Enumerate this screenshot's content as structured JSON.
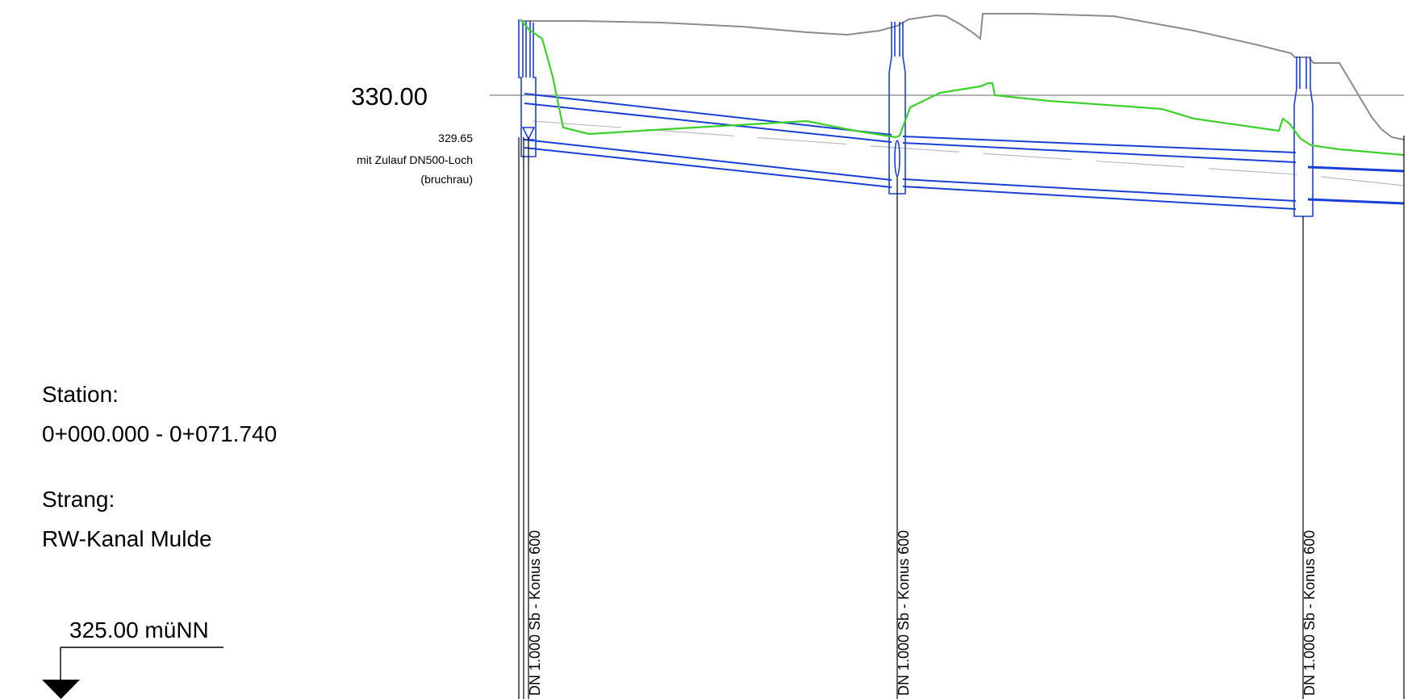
{
  "reference_elevation": "330.00",
  "inlet_note": {
    "elevation": "329.65",
    "line1": "mit Zulauf DN500-Loch",
    "line2": "(bruchrau)"
  },
  "station": {
    "label": "Station:",
    "value": "0+000.000 - 0+071.740"
  },
  "strang": {
    "label": "Strang:",
    "value": "RW-Kanal Mulde"
  },
  "datum": "325.00 müNN",
  "manholes": [
    {
      "label": "DN 1.000 Sb - Konus 600"
    },
    {
      "label": "DN 1.000 Sb - Konus 600"
    },
    {
      "label": "DN 1.000 Sb - Konus 600"
    }
  ],
  "colors": {
    "terrain": "#8c8c8c",
    "pipe": "#1a3fd6",
    "water_level": "#3bd12a",
    "axis": "#000000",
    "reference_line": "#999999"
  }
}
